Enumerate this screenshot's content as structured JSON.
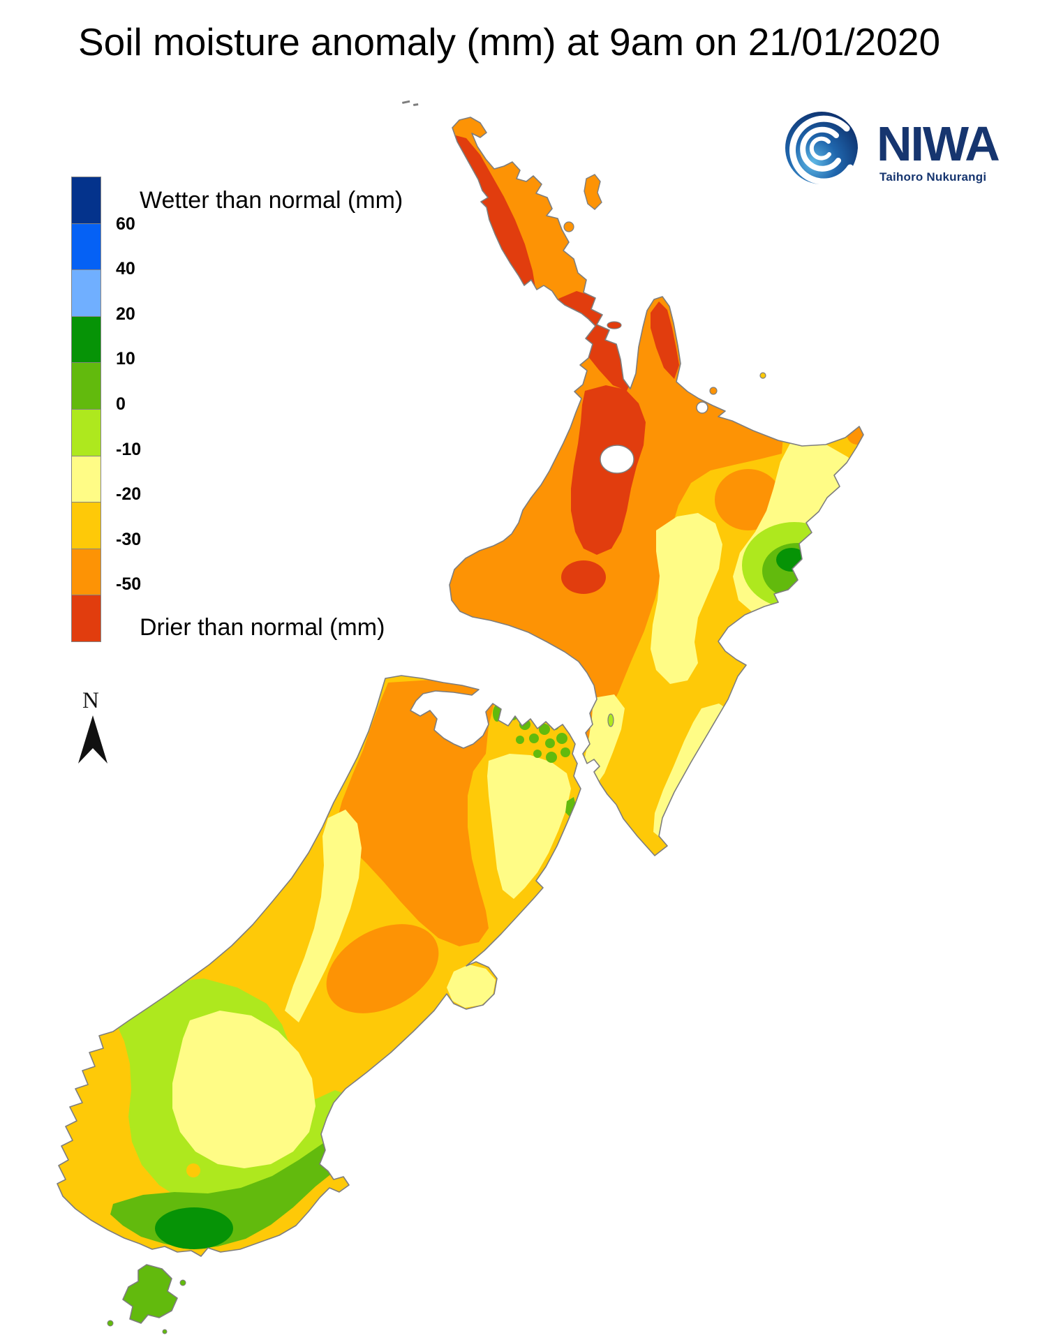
{
  "title": "Soil moisture anomaly (mm) at 9am on 21/01/2020",
  "branding": {
    "org_name": "NIWA",
    "tagline": "Taihoro Nukurangi",
    "brand_color": "#16356F"
  },
  "legend": {
    "wetter_label": "Wetter than normal (mm)",
    "drier_label": "Drier than normal (mm)",
    "bands": [
      {
        "color": "#04338C",
        "tick_below": "60"
      },
      {
        "color": "#0561F5",
        "tick_below": "40"
      },
      {
        "color": "#70AFFF",
        "tick_below": "20"
      },
      {
        "color": "#069306",
        "tick_below": "10"
      },
      {
        "color": "#62BA0D",
        "tick_below": "0"
      },
      {
        "color": "#AEE81E",
        "tick_below": "-10"
      },
      {
        "color": "#FFFC86",
        "tick_below": "-20"
      },
      {
        "color": "#FEC908",
        "tick_below": "-30"
      },
      {
        "color": "#FD9305",
        "tick_below": "-50"
      },
      {
        "color": "#E13D0E",
        "tick_below": null
      }
    ]
  },
  "map": {
    "region": "New Zealand",
    "north_label": "N",
    "coast_color": "#7d7d7d",
    "zone_colors": {
      "dark_green": "#069306",
      "medium_green": "#62BA0D",
      "yellow_green": "#AEE81E",
      "pale_yellow": "#FFFC86",
      "amber": "#FEC908",
      "orange": "#FD9305",
      "red": "#E13D0E",
      "lake": "#ffffff"
    }
  }
}
